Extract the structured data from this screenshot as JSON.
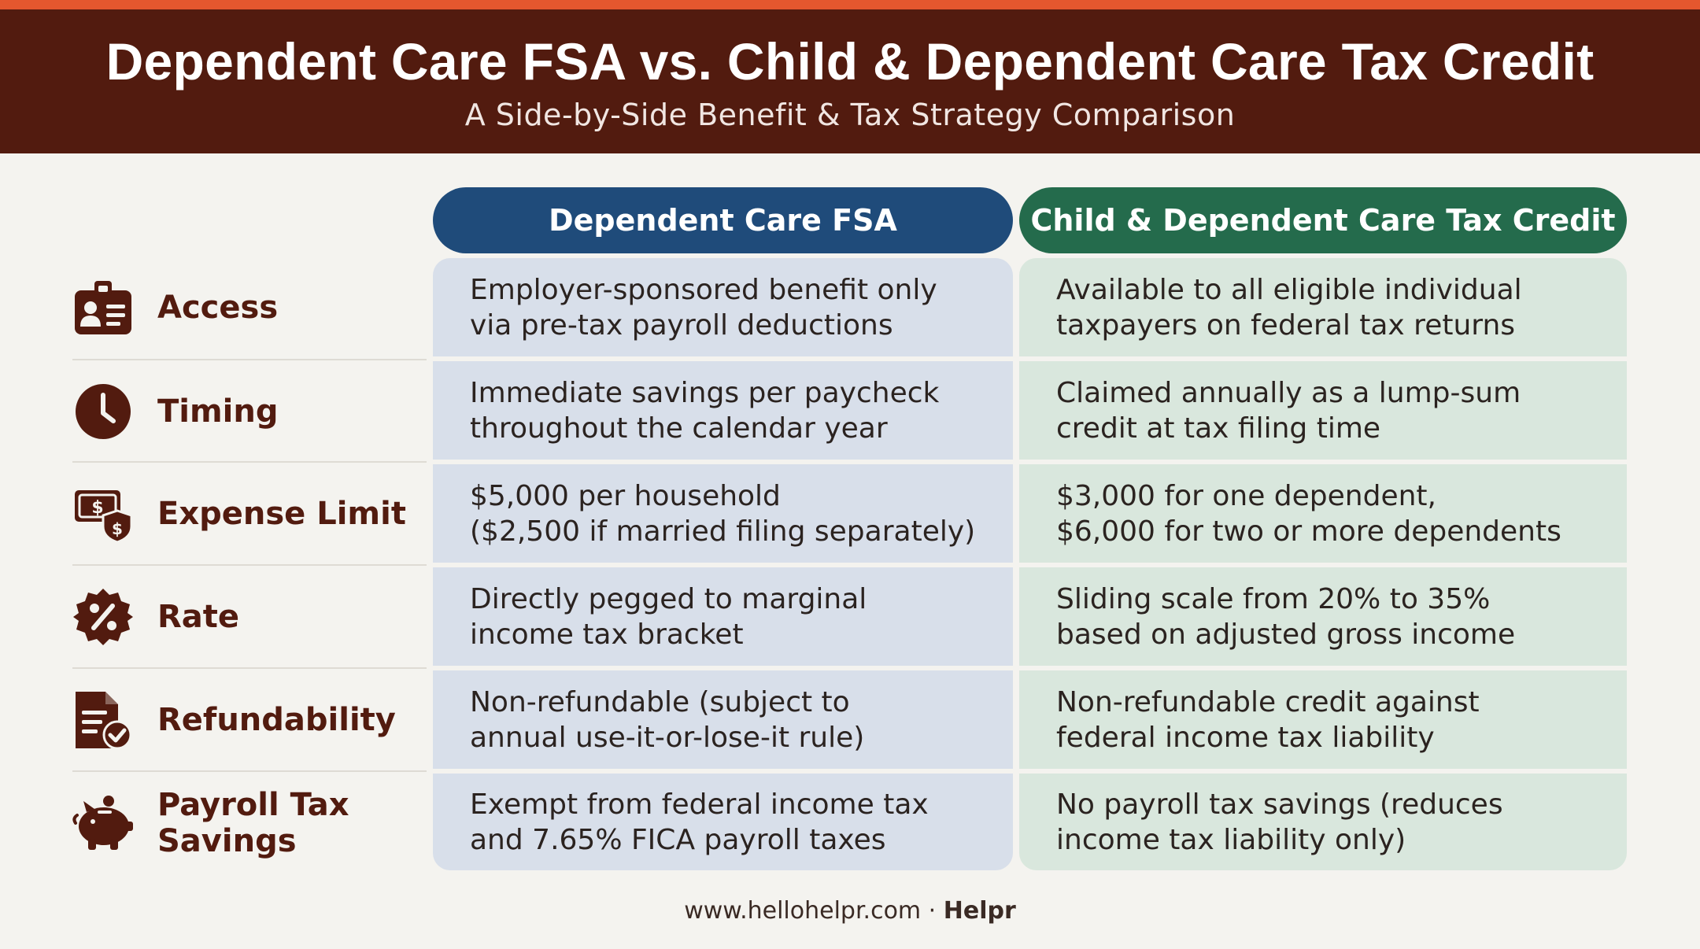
{
  "header": {
    "title": "Dependent Care FSA vs. Child & Dependent Care Tax Credit",
    "subtitle": "A Side-by-Side Benefit & Tax Strategy Comparison"
  },
  "columns": {
    "fsa": "Dependent Care FSA",
    "credit": "Child & Dependent Care Tax Credit"
  },
  "rows": [
    {
      "label": "Access",
      "icon": "id-card-icon",
      "fsa": [
        "Employer-sponsored benefit only",
        "via pre-tax payroll deductions"
      ],
      "credit": [
        "Available to all eligible individual",
        "taxpayers on federal tax returns"
      ]
    },
    {
      "label": "Timing",
      "icon": "clock-icon",
      "fsa": [
        "Immediate savings per paycheck",
        "throughout the calendar year"
      ],
      "credit": [
        "Claimed annually as a lump-sum",
        "credit at tax filing time"
      ]
    },
    {
      "label": "Expense Limit",
      "icon": "money-shield-icon",
      "fsa": [
        "$5,000 per household",
        "($2,500 if married filing separately)"
      ],
      "credit": [
        "$3,000 for one dependent,",
        "$6,000 for two or more dependents"
      ]
    },
    {
      "label": "Rate",
      "icon": "percent-badge-icon",
      "fsa": [
        "Directly pegged to marginal",
        "income tax bracket"
      ],
      "credit": [
        "Sliding scale from 20% to 35%",
        "based on adjusted gross income"
      ]
    },
    {
      "label": "Refundability",
      "icon": "document-check-icon",
      "fsa": [
        "Non-refundable (subject to",
        "annual use-it-or-lose-it rule)"
      ],
      "credit": [
        "Non-refundable credit against",
        "federal income tax liability"
      ]
    },
    {
      "label_lines": [
        "Payroll Tax",
        "Savings"
      ],
      "icon": "piggy-bank-icon",
      "fsa": [
        "Exempt from federal income tax",
        "and 7.65% FICA payroll taxes"
      ],
      "credit": [
        "No payroll tax savings (reduces",
        "income tax liability only)"
      ]
    }
  ],
  "footer": {
    "site": "www.hellohelpr.com · ",
    "brand": "Helpr"
  },
  "colors": {
    "accent_bar": "#e4572e",
    "header_bg": "#521b0f",
    "fsa_header": "#1f4b7a",
    "credit_header": "#246b4c",
    "fsa_cell": "#d8dfea",
    "credit_cell": "#d9e7dd",
    "label_text": "#521b0f"
  }
}
